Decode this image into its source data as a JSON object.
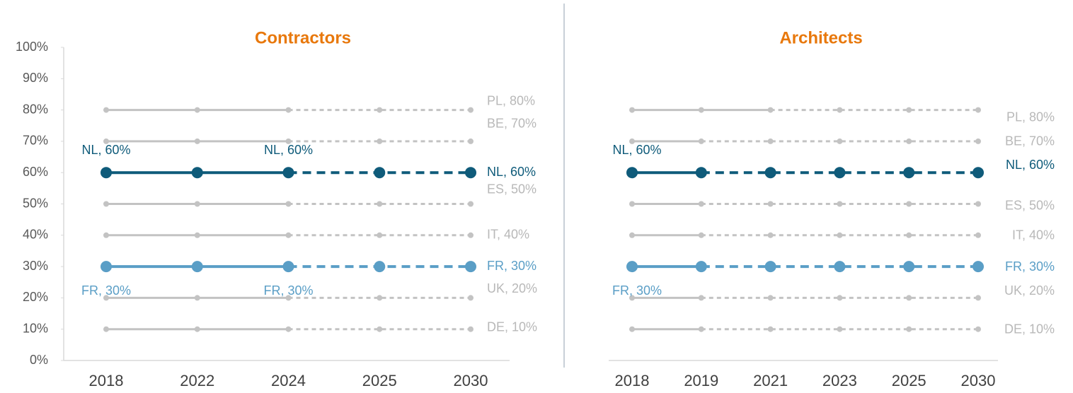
{
  "chart_data": [
    {
      "type": "line",
      "title": "Contractors",
      "categories": [
        "2018",
        "2022",
        "2024",
        "2025",
        "2030"
      ],
      "ylim": [
        0,
        100
      ],
      "yticks": [
        {
          "value": 0,
          "label": "0%"
        },
        {
          "value": 10,
          "label": "10%"
        },
        {
          "value": 20,
          "label": "20%"
        },
        {
          "value": 30,
          "label": "30%"
        },
        {
          "value": 40,
          "label": "40%"
        },
        {
          "value": 50,
          "label": "50%"
        },
        {
          "value": 60,
          "label": "60%"
        },
        {
          "value": 70,
          "label": "70%"
        },
        {
          "value": 80,
          "label": "80%"
        },
        {
          "value": 90,
          "label": "90%"
        },
        {
          "value": 100,
          "label": "100%"
        }
      ],
      "series": [
        {
          "name": "PL",
          "color": "#c3c3c3",
          "label_color": "#b8b8b8",
          "line_width": 3,
          "dashed_from": 2,
          "values": [
            80,
            80,
            80,
            80,
            80
          ],
          "value_labels": [
            null,
            null,
            null,
            null,
            "PL, 80%"
          ]
        },
        {
          "name": "BE",
          "color": "#c3c3c3",
          "label_color": "#b8b8b8",
          "line_width": 3,
          "dashed_from": 2,
          "values": [
            70,
            70,
            70,
            70,
            70
          ],
          "value_labels": [
            null,
            null,
            null,
            null,
            "BE, 70%"
          ]
        },
        {
          "name": "NL",
          "color": "#0f5b7a",
          "label_color": "#0f5b7a",
          "line_width": 4,
          "dashed_from": 2,
          "values": [
            60,
            60,
            60,
            60,
            60
          ],
          "value_labels": [
            "NL, 60%",
            null,
            "NL, 60%",
            null,
            "NL, 60%"
          ]
        },
        {
          "name": "ES",
          "color": "#c3c3c3",
          "label_color": "#b8b8b8",
          "line_width": 3,
          "dashed_from": 2,
          "values": [
            50,
            50,
            50,
            50,
            50
          ],
          "value_labels": [
            null,
            null,
            null,
            null,
            "ES, 50%"
          ]
        },
        {
          "name": "IT",
          "color": "#c3c3c3",
          "label_color": "#b8b8b8",
          "line_width": 3,
          "dashed_from": 2,
          "values": [
            40,
            40,
            40,
            40,
            40
          ],
          "value_labels": [
            null,
            null,
            null,
            null,
            "IT, 40%"
          ]
        },
        {
          "name": "FR",
          "color": "#5a9ec6",
          "label_color": "#5a9ec6",
          "line_width": 4,
          "dashed_from": 2,
          "values": [
            30,
            30,
            30,
            30,
            30
          ],
          "value_labels": [
            "FR, 30%",
            null,
            "FR, 30%",
            null,
            "FR, 30%"
          ]
        },
        {
          "name": "UK",
          "color": "#c3c3c3",
          "label_color": "#b8b8b8",
          "line_width": 3,
          "dashed_from": 2,
          "values": [
            20,
            20,
            20,
            20,
            20
          ],
          "value_labels": [
            null,
            null,
            null,
            null,
            "UK, 20%"
          ]
        },
        {
          "name": "DE",
          "color": "#c3c3c3",
          "label_color": "#b8b8b8",
          "line_width": 3,
          "dashed_from": 2,
          "values": [
            10,
            10,
            10,
            10,
            10
          ],
          "value_labels": [
            null,
            null,
            null,
            null,
            "DE, 10%"
          ]
        }
      ]
    },
    {
      "type": "line",
      "title": "Architects",
      "categories": [
        "2018",
        "2019",
        "2021",
        "2023",
        "2025",
        "2030"
      ],
      "ylim": [
        0,
        100
      ],
      "series": [
        {
          "name": "PL",
          "color": "#c3c3c3",
          "label_color": "#b8b8b8",
          "line_width": 3,
          "dashed_from": 2,
          "values": [
            80,
            80,
            80,
            80,
            80,
            80
          ],
          "value_labels": [
            null,
            null,
            null,
            null,
            null,
            "PL, 80%"
          ]
        },
        {
          "name": "BE",
          "color": "#c3c3c3",
          "label_color": "#b8b8b8",
          "line_width": 3,
          "dashed_from": 1,
          "values": [
            70,
            70,
            70,
            70,
            70,
            70
          ],
          "value_labels": [
            null,
            null,
            null,
            null,
            null,
            "BE, 70%"
          ]
        },
        {
          "name": "NL",
          "color": "#0f5b7a",
          "label_color": "#0f5b7a",
          "line_width": 4,
          "dashed_from": 1,
          "values": [
            60,
            60,
            60,
            60,
            60,
            60
          ],
          "value_labels": [
            "NL, 60%",
            null,
            null,
            null,
            null,
            "NL, 60%"
          ]
        },
        {
          "name": "ES",
          "color": "#c3c3c3",
          "label_color": "#b8b8b8",
          "line_width": 3,
          "dashed_from": 1,
          "values": [
            50,
            50,
            50,
            50,
            50,
            50
          ],
          "value_labels": [
            null,
            null,
            null,
            null,
            null,
            "ES, 50%"
          ]
        },
        {
          "name": "IT",
          "color": "#c3c3c3",
          "label_color": "#b8b8b8",
          "line_width": 3,
          "dashed_from": 1,
          "values": [
            40,
            40,
            40,
            40,
            40,
            40
          ],
          "value_labels": [
            null,
            null,
            null,
            null,
            null,
            "IT, 40%"
          ]
        },
        {
          "name": "FR",
          "color": "#5a9ec6",
          "label_color": "#5a9ec6",
          "line_width": 4,
          "dashed_from": 1,
          "values": [
            30,
            30,
            30,
            30,
            30,
            30
          ],
          "value_labels": [
            "FR, 30%",
            null,
            null,
            null,
            null,
            "FR, 30%"
          ]
        },
        {
          "name": "UK",
          "color": "#c3c3c3",
          "label_color": "#b8b8b8",
          "line_width": 3,
          "dashed_from": 1,
          "values": [
            20,
            20,
            20,
            20,
            20,
            20
          ],
          "value_labels": [
            null,
            null,
            null,
            null,
            null,
            "UK, 20%"
          ]
        },
        {
          "name": "DE",
          "color": "#c3c3c3",
          "label_color": "#b8b8b8",
          "line_width": 3,
          "dashed_from": 1,
          "values": [
            10,
            10,
            10,
            10,
            10,
            10
          ],
          "value_labels": [
            null,
            null,
            null,
            null,
            null,
            "DE, 10%"
          ]
        }
      ]
    }
  ]
}
